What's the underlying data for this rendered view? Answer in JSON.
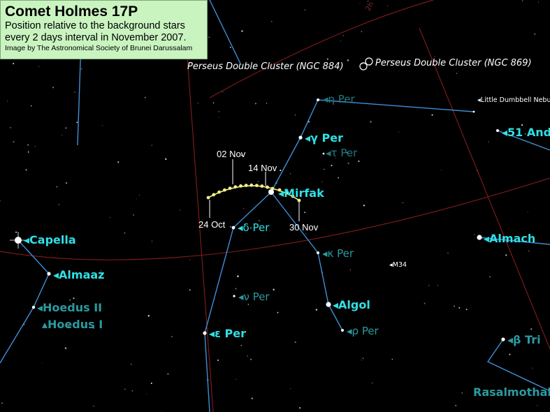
{
  "info": {
    "title": "Comet Holmes 17P",
    "line1": "Position relative to the background stars",
    "line2": "every 2 days interval in November 2007.",
    "credit": "Image by The Astronomical Society of Brunei Darussalam"
  },
  "labels": {
    "capella": "Capella",
    "almaaz": "Almaaz",
    "hoedus2": "Hoedus II",
    "hoedus1": "Hoedus I",
    "mirfak": "Mirfak",
    "delta_per": "δ Per",
    "eta_per": "η Per",
    "gamma_per": "γ Per",
    "tau_per": "τ Per",
    "kappa_per": "κ Per",
    "nu_per": "ν Per",
    "epsilon_per": "ε Per",
    "algol": "Algol",
    "rho_per": "ρ Per",
    "almach": "Almach",
    "m34": "M34",
    "beta_tri": "β Tri",
    "rasalmothal": "Rasalmothallah",
    "and51": "51 And",
    "little_dumbbell": "Little Dumbbell Nebula",
    "ngc884": "Perseus Double Cluster (NGC 884)",
    "ngc869": "Perseus Double Cluster (NGC 869)",
    "grid_2h": "2h"
  },
  "dates": {
    "d02": "02 Nov",
    "d14": "14 Nov",
    "d24": "24 Oct",
    "d30": "30 Nov"
  },
  "colors": {
    "label_bright": "#2fe0e6",
    "label_dim": "#2a9aa0",
    "line": "#3f8fd6",
    "grid": "#7a1a1a",
    "comet": "#f4f08a",
    "info_bg": "#c9f4c0"
  }
}
